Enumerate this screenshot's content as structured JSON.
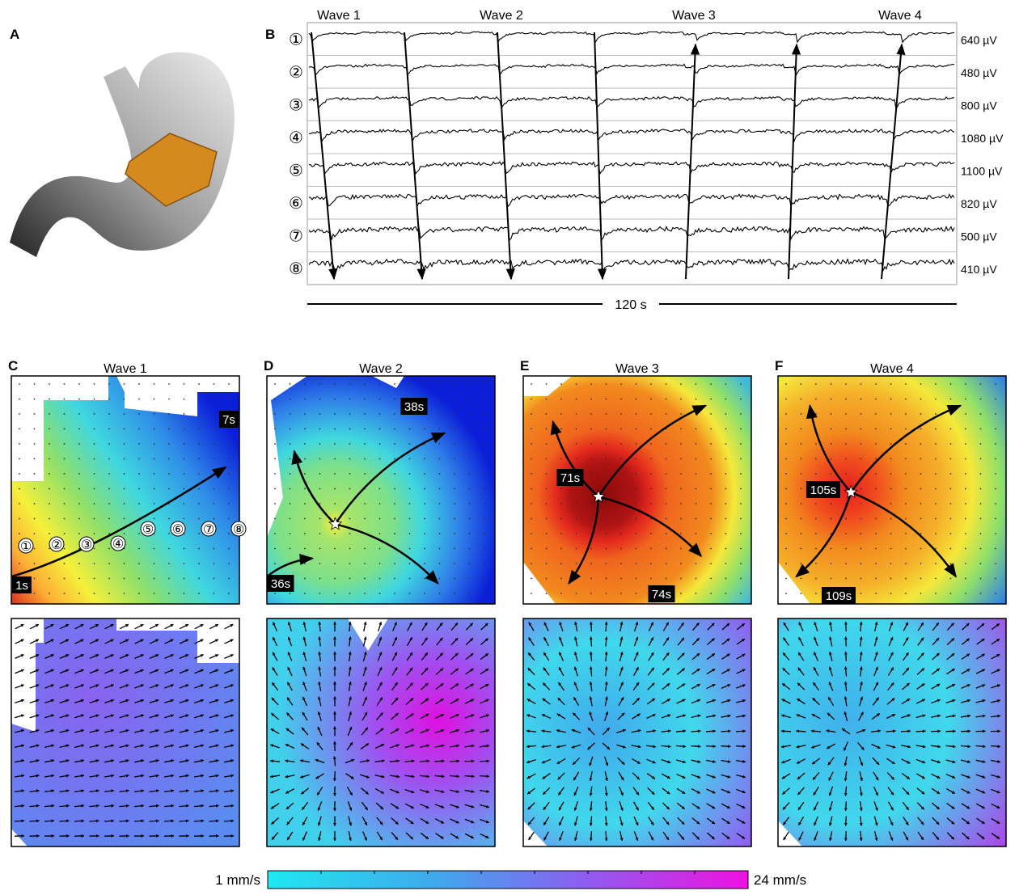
{
  "panel_a": {
    "label": "A"
  },
  "panel_b": {
    "label": "B",
    "waves": [
      "Wave 1",
      "Wave 2",
      "Wave 3",
      "Wave 4"
    ],
    "channels": [
      "①",
      "②",
      "③",
      "④",
      "⑤",
      "⑥",
      "⑦",
      "⑧"
    ],
    "amplitudes": [
      "640 µV",
      "480 µV",
      "800 µV",
      "1080 µV",
      "1100 µV",
      "820 µV",
      "500 µV",
      "410 µV"
    ],
    "duration": "120 s"
  },
  "maps": [
    {
      "label": "C",
      "title": "Wave 1",
      "times": [
        "7s",
        "1s"
      ],
      "electrodes": [
        "①",
        "②",
        "③",
        "④",
        "⑤",
        "⑥",
        "⑦",
        "⑧"
      ]
    },
    {
      "label": "D",
      "title": "Wave 2",
      "times": [
        "38s",
        "36s"
      ]
    },
    {
      "label": "E",
      "title": "Wave 3",
      "times": [
        "71s",
        "74s"
      ]
    },
    {
      "label": "F",
      "title": "Wave 4",
      "times": [
        "105s",
        "109s"
      ]
    }
  ],
  "colorbar": {
    "min": "1 mm/s",
    "max": "24 mm/s"
  }
}
